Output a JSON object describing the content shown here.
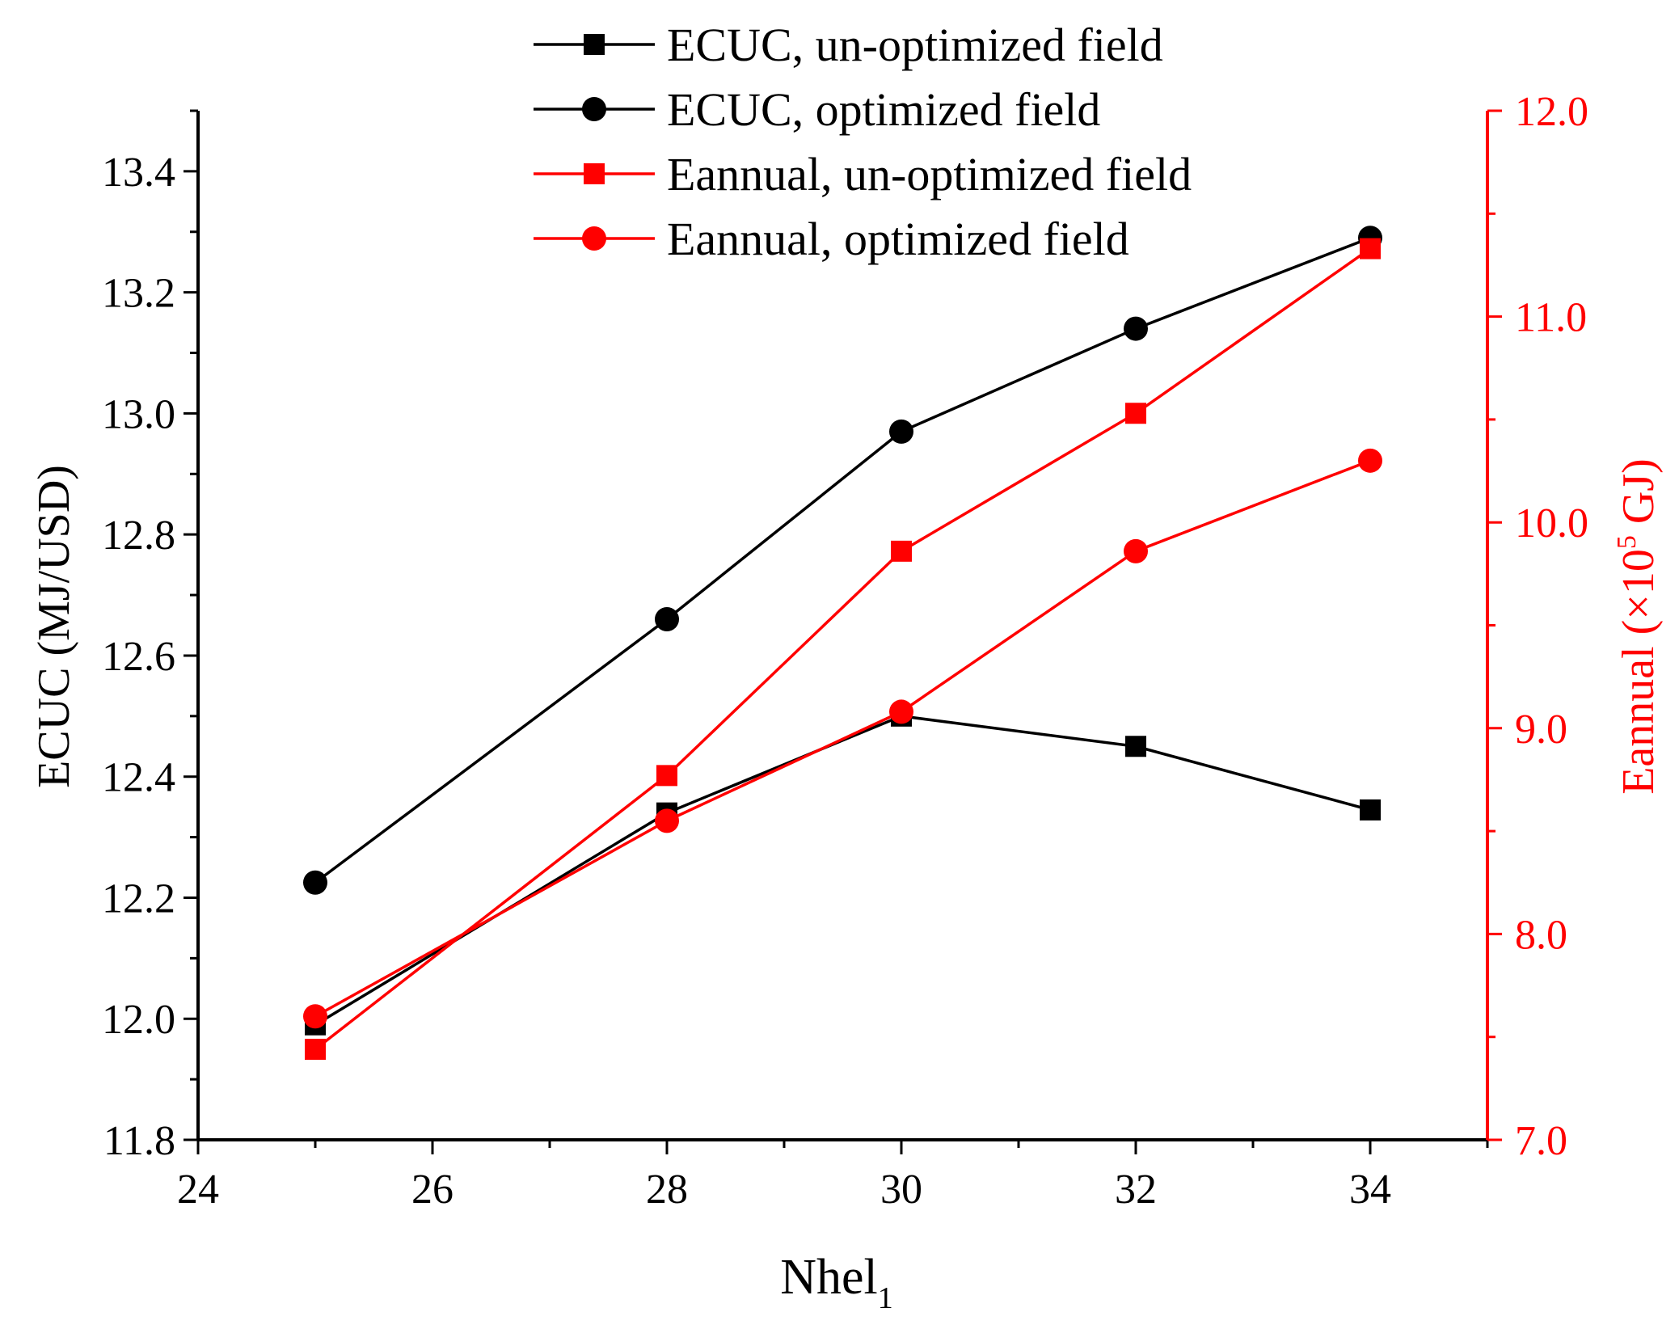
{
  "chart_data": {
    "type": "line",
    "title": "",
    "xlabel": "Nhel",
    "xlabel_sub": "1",
    "ylabel": "ECUC (MJ/USD)",
    "y2label_pre": "Eannual (×10",
    "y2label_sup": "5",
    "y2label_post": " GJ)",
    "xlim": [
      24,
      35
    ],
    "ylim": [
      11.8,
      13.5
    ],
    "y2lim": [
      7.0,
      12.0
    ],
    "x_ticks": [
      24,
      26,
      28,
      30,
      32,
      34
    ],
    "y_ticks": [
      "11.8",
      "12.0",
      "12.2",
      "12.4",
      "12.6",
      "12.8",
      "13.0",
      "13.2",
      "13.4"
    ],
    "y2_ticks": [
      "7.0",
      "8.0",
      "9.0",
      "10.0",
      "11.0",
      "12.0"
    ],
    "x_minor_step": 1,
    "y_minor_step": 0.1,
    "y2_minor_step": 0.5,
    "grid": false,
    "legend_position": "top-center",
    "colors": {
      "black": "#000000",
      "red": "#ff0000"
    },
    "series": [
      {
        "name": "ECUC, un-optimized field",
        "axis": "left",
        "marker": "square",
        "color": "#000000",
        "x": [
          25,
          28,
          30,
          32,
          34
        ],
        "values": [
          11.99,
          12.34,
          12.5,
          12.45,
          12.345
        ]
      },
      {
        "name": "ECUC, optimized field",
        "axis": "left",
        "marker": "circle",
        "color": "#000000",
        "x": [
          25,
          28,
          30,
          32,
          34
        ],
        "values": [
          12.225,
          12.66,
          12.97,
          13.14,
          13.29
        ]
      },
      {
        "name": "Eannual, un-optimized field",
        "axis": "right",
        "marker": "square",
        "color": "#ff0000",
        "x": [
          25,
          28,
          30,
          32,
          34
        ],
        "values": [
          7.44,
          8.77,
          9.86,
          10.53,
          11.33
        ]
      },
      {
        "name": "Eannual, optimized field",
        "axis": "right",
        "marker": "circle",
        "color": "#ff0000",
        "x": [
          25,
          28,
          30,
          32,
          34
        ],
        "values": [
          7.6,
          8.55,
          9.08,
          9.86,
          10.3
        ]
      }
    ]
  }
}
